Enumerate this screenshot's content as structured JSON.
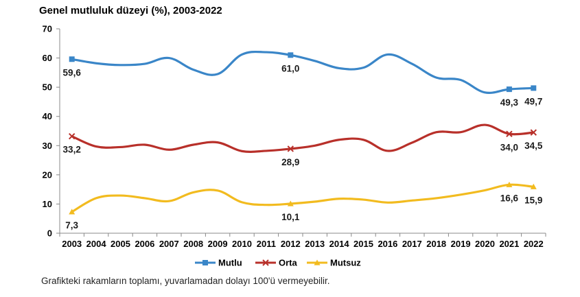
{
  "chart_data": {
    "type": "line",
    "title": "Genel mutluluk düzeyi (%), 2003-2022",
    "xlabel": "",
    "ylabel": "",
    "ylim": [
      0,
      70
    ],
    "yticks": [
      0,
      10,
      20,
      30,
      40,
      50,
      60,
      70
    ],
    "grid": false,
    "legend_position": "bottom",
    "categories": [
      "2003",
      "2004",
      "2005",
      "2006",
      "2007",
      "2008",
      "2009",
      "2010",
      "2011",
      "2012",
      "2013",
      "2014",
      "2015",
      "2016",
      "2017",
      "2018",
      "2019",
      "2020",
      "2021",
      "2022"
    ],
    "series": [
      {
        "name": "Mutlu",
        "color": "#3a86c8",
        "marker": "square",
        "values": [
          59.6,
          58.2,
          57.6,
          58.0,
          60.0,
          56.0,
          54.5,
          61.2,
          62.0,
          61.0,
          59.0,
          56.5,
          56.7,
          61.2,
          58.0,
          53.3,
          52.5,
          48.2,
          49.3,
          49.7
        ],
        "labels": {
          "0": "59,6",
          "9": "61,0",
          "18": "49,3",
          "19": "49,7"
        }
      },
      {
        "name": "Orta",
        "color": "#b8302a",
        "marker": "cross",
        "values": [
          33.2,
          29.7,
          29.5,
          30.3,
          28.6,
          30.3,
          31.1,
          28.1,
          28.2,
          28.9,
          30.0,
          32.0,
          32.0,
          28.2,
          31.0,
          34.6,
          34.6,
          37.1,
          34.0,
          34.5
        ],
        "labels": {
          "0": "33,2",
          "9": "28,9",
          "18": "34,0",
          "19": "34,5"
        }
      },
      {
        "name": "Mutsuz",
        "color": "#f2bb1f",
        "marker": "triangle",
        "values": [
          7.3,
          12.0,
          12.9,
          12.0,
          11.0,
          14.0,
          14.6,
          10.6,
          9.7,
          10.1,
          10.8,
          11.8,
          11.5,
          10.5,
          11.2,
          12.0,
          13.2,
          14.7,
          16.6,
          15.9
        ],
        "labels": {
          "0": "7,3",
          "9": "10,1",
          "18": "16,6",
          "19": "15,9"
        }
      }
    ]
  },
  "footnote": "Grafikteki rakamların toplamı, yuvarlamadan dolayı 100'ü vermeyebilir."
}
